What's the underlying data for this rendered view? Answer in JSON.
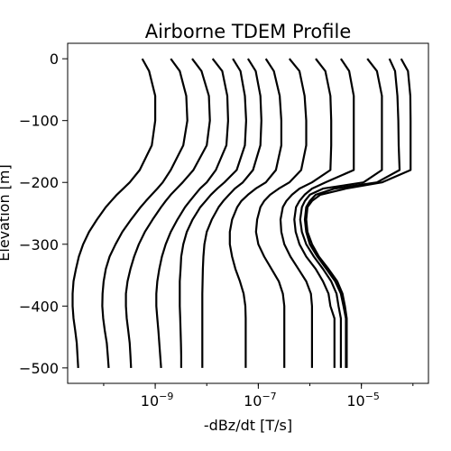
{
  "chart_data": {
    "type": "line",
    "title": "Airborne TDEM Profile",
    "xlabel": "-dBz/dt [T/s]",
    "ylabel": "Elevation [m]",
    "xscale": "log",
    "xlim": [
      2e-11,
      0.0002
    ],
    "ylim": [
      -525,
      25
    ],
    "grid": false,
    "legend": "none",
    "line_color": "#000000",
    "xticks": [
      {
        "value": 1e-09,
        "base": "10",
        "exp": "−9"
      },
      {
        "value": 1e-07,
        "base": "10",
        "exp": "−7"
      },
      {
        "value": 1e-05,
        "base": "10",
        "exp": "−5"
      }
    ],
    "yticks": [
      {
        "value": 0,
        "label": "0"
      },
      {
        "value": -100,
        "label": "−100"
      },
      {
        "value": -200,
        "label": "−200"
      },
      {
        "value": -300,
        "label": "−300"
      },
      {
        "value": -400,
        "label": "−400"
      },
      {
        "value": -500,
        "label": "−500"
      }
    ],
    "elevation": [
      0,
      -20,
      -60,
      -100,
      -140,
      -180,
      -200,
      -210,
      -220,
      -230,
      -240,
      -260,
      -280,
      -300,
      -320,
      -340,
      -360,
      -380,
      -400,
      -420,
      -440,
      -460,
      -480,
      -500
    ],
    "series": [
      {
        "values": [
          5.6e-10,
          7.6e-10,
          1e-09,
          1e-09,
          8.6e-10,
          5e-10,
          3.2e-10,
          2.4e-10,
          1.8e-10,
          1.4e-10,
          1.1e-10,
          7.4e-11,
          5.2e-11,
          4e-11,
          3.3e-11,
          2.9e-11,
          2.6e-11,
          2.5e-11,
          2.5e-11,
          2.6e-11,
          2.8e-11,
          3e-11,
          3.1e-11,
          3.2e-11
        ]
      },
      {
        "values": [
          2e-09,
          3e-09,
          4e-09,
          4.2e-09,
          3.5e-09,
          2e-09,
          1.4e-09,
          1.1e-09,
          8.5e-10,
          6.6e-10,
          5.2e-10,
          3.4e-10,
          2.3e-10,
          1.7e-10,
          1.3e-10,
          1.1e-10,
          1e-10,
          9.5e-11,
          9.4e-11,
          9.8e-11,
          1.05e-10,
          1.15e-10,
          1.2e-10,
          1.25e-10
        ]
      },
      {
        "values": [
          5.2e-09,
          7.9e-09,
          1.1e-08,
          1.15e-08,
          1e-08,
          5.5e-09,
          3.4e-09,
          2.6e-09,
          2e-09,
          1.6e-09,
          1.3e-09,
          8.9e-10,
          6.3e-10,
          4.8e-10,
          3.9e-10,
          3.3e-10,
          2.9e-10,
          2.7e-10,
          2.7e-10,
          2.8e-10,
          3e-10,
          3.2e-10,
          3.3e-10,
          3.4e-10
        ]
      },
      {
        "values": [
          1.3e-08,
          2e-08,
          2.5e-08,
          2.6e-08,
          2.4e-08,
          1.5e-08,
          1e-08,
          7.4e-09,
          5.9e-09,
          4.7e-09,
          3.8e-09,
          2.7e-09,
          2e-09,
          1.6e-09,
          1.35e-09,
          1.2e-09,
          1.1e-09,
          1.05e-09,
          1.05e-09,
          1.1e-09,
          1.15e-09,
          1.2e-09,
          1.25e-09,
          1.3e-09
        ]
      },
      {
        "values": [
          3.2e-08,
          4.5e-08,
          5.5e-08,
          5.8e-08,
          5.5e-08,
          3.8e-08,
          2.2e-08,
          1.6e-08,
          1.2e-08,
          9.5e-09,
          7.5e-09,
          5.3e-09,
          4.1e-09,
          3.5e-09,
          3.2e-09,
          3.1e-09,
          3e-09,
          3e-09,
          3e-09,
          3.05e-09,
          3.1e-09,
          3.15e-09,
          3.2e-09,
          3.2e-09
        ]
      },
      {
        "values": [
          6.3e-08,
          8.9e-08,
          1.1e-07,
          1.15e-07,
          1.1e-07,
          7.9e-08,
          5e-08,
          3.5e-08,
          2.7e-08,
          2.1e-08,
          1.7e-08,
          1.25e-08,
          1e-08,
          9e-09,
          8.6e-09,
          8.4e-09,
          8.3e-09,
          8.2e-09,
          8.2e-09,
          8.2e-09,
          8.2e-09,
          8.2e-09,
          8.2e-09,
          8.2e-09
        ]
      },
      {
        "values": [
          1.4e-07,
          2e-07,
          2.6e-07,
          2.8e-07,
          2.8e-07,
          2.2e-07,
          1.4e-07,
          8.9e-08,
          6.3e-08,
          4.7e-08,
          3.9e-08,
          3.1e-08,
          2.8e-08,
          2.8e-08,
          3.1e-08,
          3.6e-08,
          4.4e-08,
          5.2e-08,
          5.6e-08,
          5.7e-08,
          5.7e-08,
          5.7e-08,
          5.7e-08,
          5.7e-08
        ]
      },
      {
        "values": [
          4e-07,
          6.3e-07,
          7.9e-07,
          8.5e-07,
          8.5e-07,
          6.8e-07,
          4e-07,
          2.5e-07,
          1.7e-07,
          1.3e-07,
          1.1e-07,
          9.5e-08,
          9e-08,
          1e-07,
          1.3e-07,
          1.8e-07,
          2.5e-07,
          3e-07,
          3.2e-07,
          3.2e-07,
          3.2e-07,
          3.2e-07,
          3.2e-07,
          3.2e-07
        ]
      },
      {
        "values": [
          1.3e-06,
          2e-06,
          2.5e-06,
          2.6e-06,
          2.6e-06,
          2.5e-06,
          1.1e-06,
          6.3e-07,
          4.5e-07,
          3.5e-07,
          3e-07,
          2.7e-07,
          2.8e-07,
          3.2e-07,
          4.2e-07,
          6e-07,
          8.5e-07,
          1.05e-06,
          1.1e-06,
          1.1e-06,
          1.1e-06,
          1.1e-06,
          1.1e-06,
          1.1e-06
        ]
      },
      {
        "values": [
          4e-06,
          5.8e-06,
          7.1e-06,
          7.1e-06,
          7.1e-06,
          7.1e-06,
          2e-06,
          1.1e-06,
          7.9e-07,
          6.3e-07,
          5.4e-07,
          5e-07,
          5.3e-07,
          6.3e-07,
          8.5e-07,
          1.3e-06,
          1.8e-06,
          2.3e-06,
          2.5e-06,
          3e-06,
          3e-06,
          3e-06,
          3e-06,
          3e-06
        ]
      },
      {
        "values": [
          1.3e-05,
          2e-05,
          2.5e-05,
          2.5e-05,
          2.5e-05,
          2.5e-05,
          1.1e-05,
          1.8e-06,
          1e-06,
          8e-07,
          7e-07,
          6.5e-07,
          7e-07,
          8.5e-07,
          1.2e-06,
          1.8e-06,
          2.6e-06,
          3.3e-06,
          3.6e-06,
          4e-06,
          4e-06,
          4e-06,
          4e-06,
          4e-06
        ]
      },
      {
        "values": [
          3.5e-05,
          4.5e-05,
          5e-05,
          5.2e-05,
          5.3e-05,
          5.5e-05,
          2e-05,
          3e-06,
          1.3e-06,
          1e-06,
          8.5e-07,
          8e-07,
          8.5e-07,
          1e-06,
          1.4e-06,
          2.1e-06,
          3.1e-06,
          4e-06,
          4.5e-06,
          5e-06,
          5e-06,
          5e-06,
          5e-06,
          5e-06
        ]
      },
      {
        "values": [
          5.9e-05,
          8e-05,
          8.9e-05,
          9e-05,
          9e-05,
          9e-05,
          2.5e-05,
          5e-06,
          1.6e-06,
          1.1e-06,
          9e-07,
          8.5e-07,
          9e-07,
          1.1e-06,
          1.5e-06,
          2.3e-06,
          3.4e-06,
          4.3e-06,
          4.8e-06,
          5.2e-06,
          5.2e-06,
          5.2e-06,
          5.2e-06,
          5.2e-06
        ]
      }
    ]
  }
}
